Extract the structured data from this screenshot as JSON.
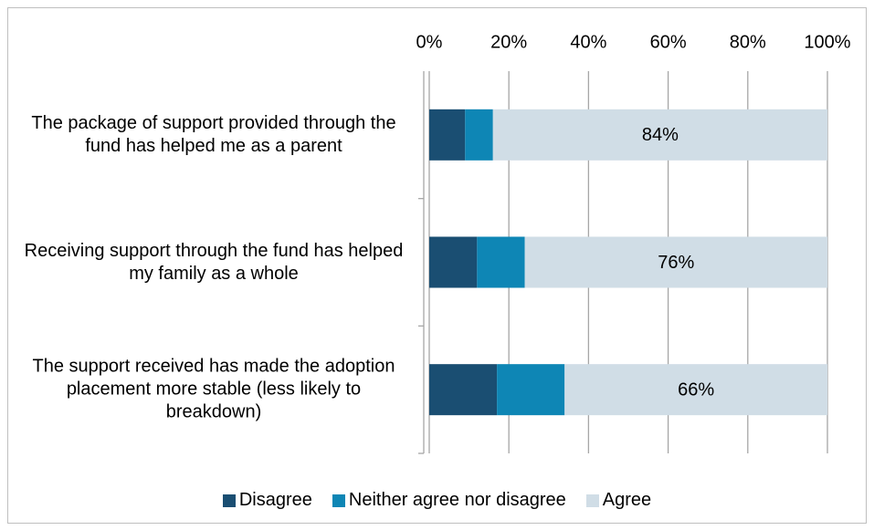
{
  "chart_data": {
    "type": "stacked_barh",
    "categories": [
      "The package of support provided through the fund has helped me as a parent",
      "Receiving support through the fund has helped my family as a whole",
      "The support received has made the adoption placement more stable (less likely to breakdown)"
    ],
    "series": [
      {
        "name": "Disagree",
        "color": "#1a4e72",
        "values": [
          9,
          12,
          17
        ]
      },
      {
        "name": "Neither agree nor disagree",
        "color": "#0e86b5",
        "values": [
          7,
          12,
          17
        ]
      },
      {
        "name": "Agree",
        "color": "#d0dde6",
        "values": [
          84,
          76,
          66
        ],
        "value_labels": [
          "84%",
          "76%",
          "66%"
        ]
      }
    ],
    "xlim": [
      0,
      100
    ],
    "xticks": [
      {
        "value": 0,
        "label": "0%"
      },
      {
        "value": 20,
        "label": "20%"
      },
      {
        "value": 40,
        "label": "40%"
      },
      {
        "value": 60,
        "label": "60%"
      },
      {
        "value": 80,
        "label": "80%"
      },
      {
        "value": 100,
        "label": "100%"
      }
    ],
    "grid": true,
    "legend": "bottom"
  }
}
